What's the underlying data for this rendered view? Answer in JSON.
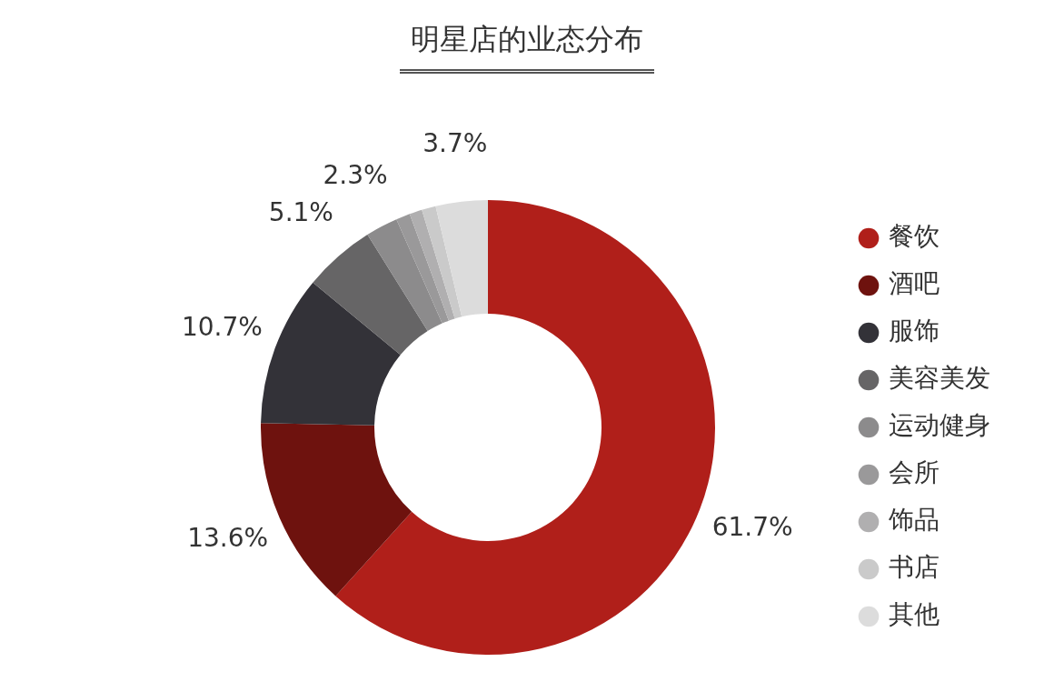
{
  "chart_data": {
    "type": "donut",
    "title": "明星店的业态分布",
    "categories": [
      "餐饮",
      "酒吧",
      "服饰",
      "美容美发",
      "运动健身",
      "会所",
      "饰品",
      "书店",
      "其他"
    ],
    "values": [
      61.7,
      13.6,
      10.7,
      5.1,
      2.3,
      1.0,
      0.9,
      1.0,
      3.7
    ],
    "colors": [
      "#b01f1a",
      "#6e120e",
      "#333238",
      "#666566",
      "#8c8b8c",
      "#9a999a",
      "#b0afb0",
      "#cacaca",
      "#dcdcdc"
    ],
    "value_labels": [
      "61.7%",
      "13.6%",
      "10.7%",
      "5.1%",
      "2.3%",
      null,
      null,
      null,
      "3.7%"
    ],
    "legend": "right"
  }
}
